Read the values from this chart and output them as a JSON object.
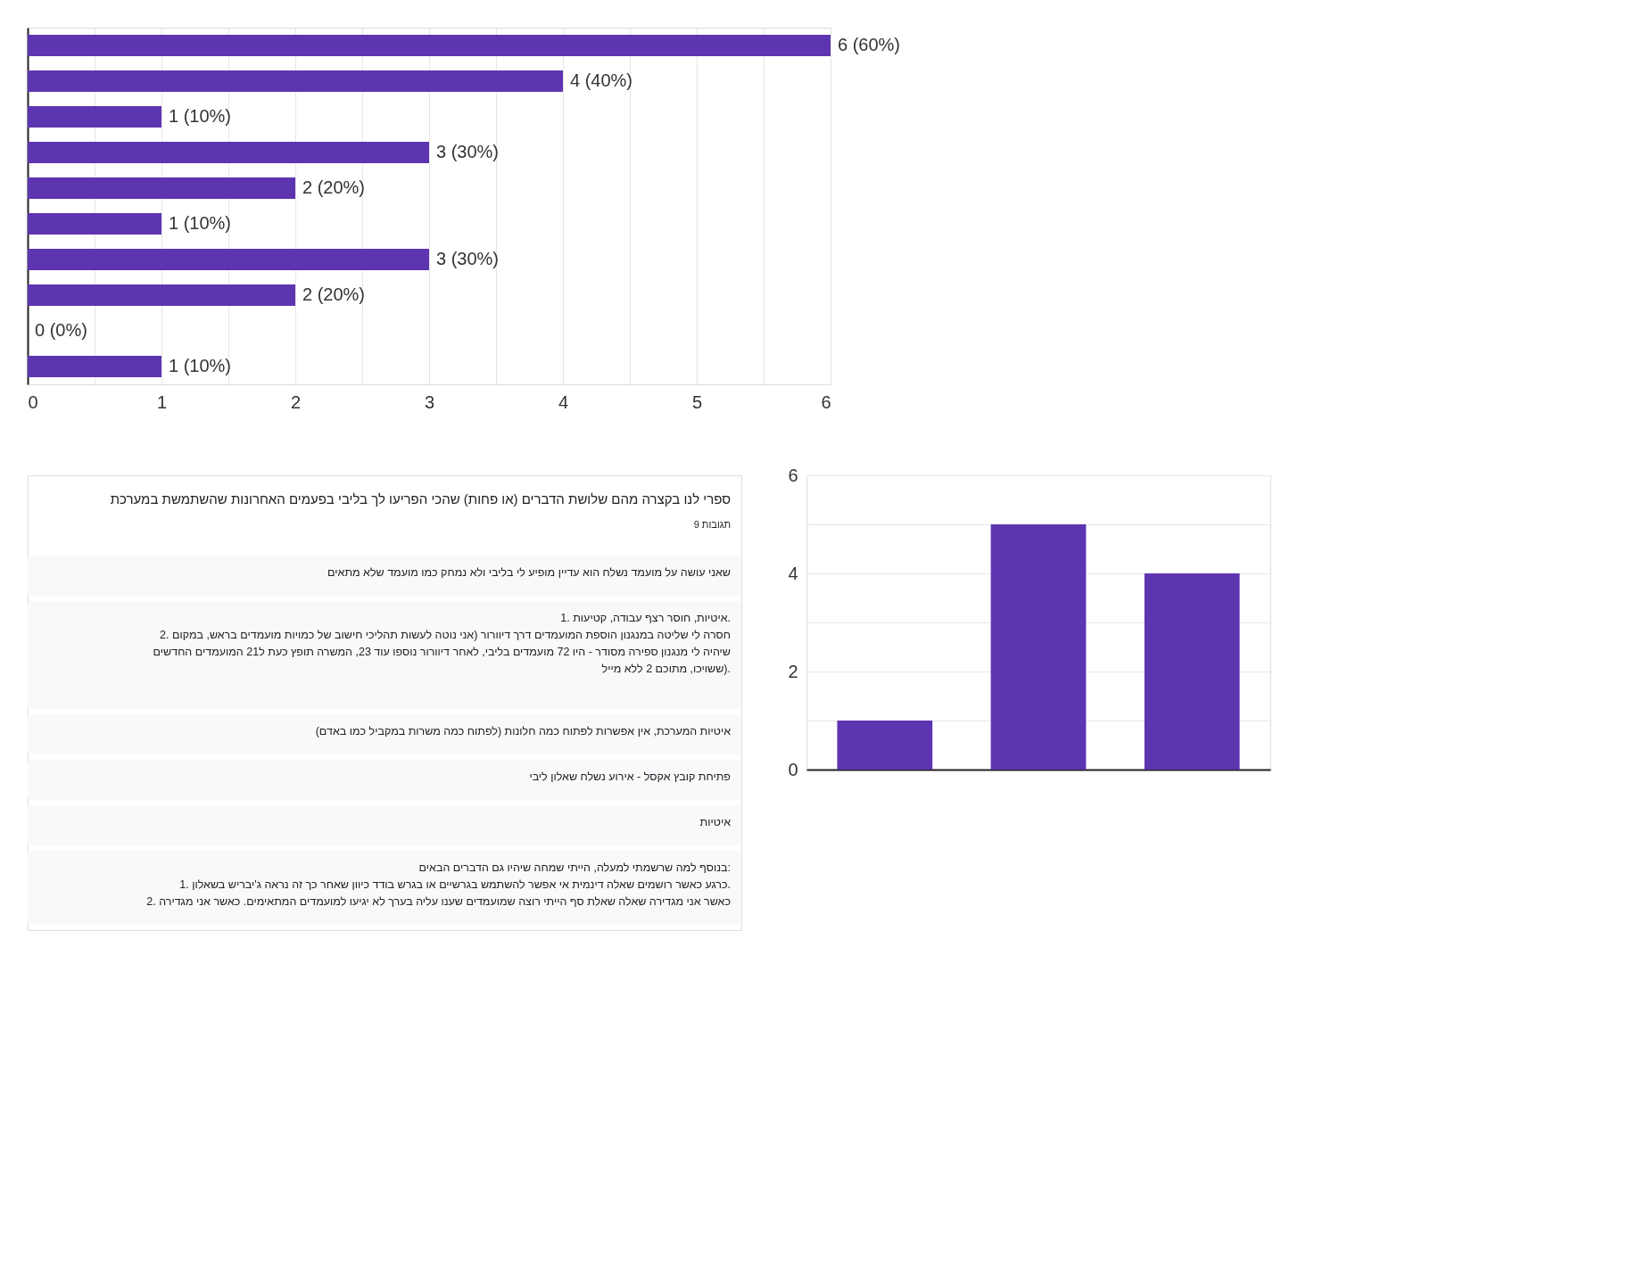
{
  "chart_data": [
    {
      "type": "bar",
      "orientation": "horizontal",
      "categories": [
        null,
        null,
        null,
        null,
        null,
        null,
        null,
        null,
        null,
        null
      ],
      "values": [
        6,
        4,
        1,
        3,
        2,
        1,
        3,
        2,
        0,
        1
      ],
      "value_labels": [
        "6 (60%)",
        "4 (40%)",
        "1 (10%)",
        "3 (30%)",
        "2 (20%)",
        "1 (10%)",
        "3 (30%)",
        "2 (20%)",
        "0 (0%)",
        "1 (10%)"
      ],
      "color": "#5e35b1",
      "xlim": [
        0,
        6
      ],
      "xticks": [
        0,
        {
          "value": 0.5,
          "label": null
        },
        1,
        {
          "value": 1.5,
          "label": null
        },
        2,
        {
          "value": 2.5,
          "label": null
        },
        3,
        {
          "value": 3.5,
          "label": null
        },
        4,
        {
          "value": 4.5,
          "label": null
        },
        5,
        {
          "value": 5.5,
          "label": null
        },
        6
      ],
      "grid": "x",
      "tick_labels": "x"
    },
    {
      "type": "other",
      "title": "ספרי לנו בקצרה מהם שלושת הדברים (או פחות) שהכי הפריעו לך בליבי בפעמים האחרונות שהשתמשת במערכת",
      "subtitle": "9 תגובות",
      "annotations": [
        "שאני עושה על מועמד נשלח הוא עדיין מופיע לי בליבי ולא נמחק כמו מועמד שלא מתאים",
        "1. איטיות, חוסר רצף עבודה, קטיעות.\n\n2. חסרה לי שליטה במנגנון הוספת המועמדים דרך דיוורור (אני נוטה לעשות תהליכי חישוב של כמויות מועמדים בראש, במקום\nשיהיה לי מנגנון ספירה מסודר - היו 72 מועמדים בליבי, לאחר דיוורור נוספו עוד 23, המשרה תופץ כעת ל21 המועמדים החדשים\nששויכו, מתוכם 2 ללא מייל).",
        "איטיות המערכת, אין אפשרות לפתוח כמה חלונות (לפתוח כמה משרות במקביל כמו באדם)",
        "פתיחת קובץ אקסל - אירוע נשלח שאלון ליבי",
        "איטיות",
        "בנוסף למה שרשמתי למעלה, הייתי שמחה שיהיו גם הדברים הבאים:\n1. כרגע כאשר רושמים שאלה דינמית אי אפשר להשתמש בגרשיים או בגרש בודד כיוון שאחר כך זה נראה ג'יבריש בשאלון.\n2. כאשר אני מגדירה שאלה שאלת סף הייתי רוצה שמועמדים שענו עליה בערך לא יגיעו למועמדים המתאימים. כאשר אני מגדירה"
      ]
    },
    {
      "type": "bar",
      "categories": [
        null,
        null,
        null
      ],
      "values": [
        1,
        5,
        4
      ],
      "color": "#5e35b1",
      "ylim": [
        0,
        6
      ],
      "yticks": [
        0,
        {
          "value": 1,
          "label": null
        },
        2,
        {
          "value": 3,
          "label": null
        },
        4,
        {
          "value": 5,
          "label": null
        },
        6
      ],
      "grid": "y",
      "tick_labels": "y"
    }
  ]
}
